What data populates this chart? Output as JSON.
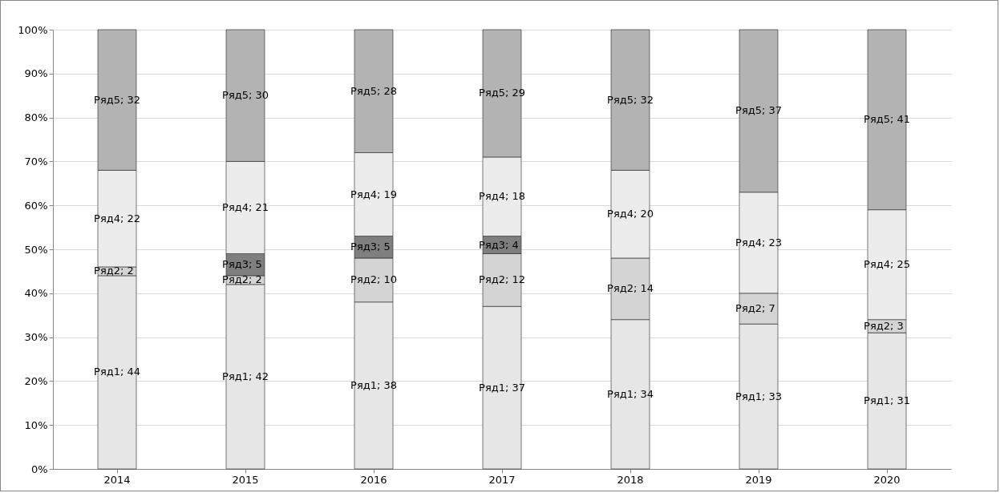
{
  "chart_data": {
    "type": "bar",
    "stacked": true,
    "categories": [
      "2014",
      "2015",
      "2016",
      "2017",
      "2018",
      "2019",
      "2020"
    ],
    "series": [
      {
        "name": "Ряд1",
        "color": "#e6e6e6",
        "values": [
          44,
          42,
          38,
          37,
          34,
          33,
          31
        ],
        "value_labels": [
          "; 44",
          "; 42",
          "; 38",
          "; 37",
          "; 34",
          "; 33",
          "; 31"
        ]
      },
      {
        "name": "Ряд2",
        "color": "#d4d4d4",
        "values": [
          2,
          2,
          10,
          12,
          14,
          7,
          3
        ],
        "value_labels": [
          "; 2",
          "; 2",
          "; 10",
          "; 12",
          "; 14",
          "; 7",
          "; 3"
        ]
      },
      {
        "name": "Ряд3",
        "color": "#7f7f7f",
        "values": [
          null,
          5,
          5,
          4,
          null,
          null,
          null
        ],
        "value_labels": [
          null,
          "; 5",
          "; 5",
          "; 4",
          null,
          null,
          null
        ]
      },
      {
        "name": "Ряд4",
        "color": "#ececec",
        "values": [
          22,
          21,
          19,
          18,
          20,
          23,
          25
        ],
        "value_labels": [
          "; 22",
          "; 21",
          "; 19",
          "; 18",
          "; 20",
          "; 23",
          "; 25"
        ]
      },
      {
        "name": "Ряд5",
        "color": "#b3b3b3",
        "values": [
          32,
          30,
          28,
          29,
          32,
          37,
          41
        ],
        "value_labels": [
          "; 32",
          "; 30",
          "; 28",
          "; 29",
          "; 32",
          "; 37",
          "; 41"
        ]
      }
    ],
    "ylim": [
      0,
      100
    ],
    "yticks": [
      {
        "value": 0,
        "label": "0%"
      },
      {
        "value": 10,
        "label": "10%"
      },
      {
        "value": 20,
        "label": "20%"
      },
      {
        "value": 30,
        "label": "30%"
      },
      {
        "value": 40,
        "label": "40%"
      },
      {
        "value": 50,
        "label": "50%"
      },
      {
        "value": 60,
        "label": "60%"
      },
      {
        "value": 70,
        "label": "70%"
      },
      {
        "value": 80,
        "label": "80%"
      },
      {
        "value": 90,
        "label": "90%"
      },
      {
        "value": 100,
        "label": "100%"
      }
    ],
    "grid": "y",
    "legend": false
  }
}
